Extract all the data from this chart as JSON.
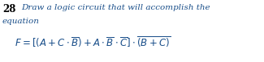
{
  "problem_number": "28",
  "line1": "Draw a logic circuit that will accomplish the",
  "line2": "equation",
  "text_color": "#1a4f8a",
  "number_color": "#000000",
  "bg_color": "#ffffff",
  "fontsize_number": 8.5,
  "fontsize_text": 7.5,
  "fontsize_eq": 8.5,
  "eq": "$\\mathit{F} = [(\\mathit{A} + \\mathit{C} \\cdot \\overline{\\mathit{B}}) + \\mathit{A} \\cdot \\overline{\\mathit{B}} \\cdot \\overline{\\mathit{C}}] \\cdot \\overline{(\\mathit{B} + \\mathit{C})}$"
}
